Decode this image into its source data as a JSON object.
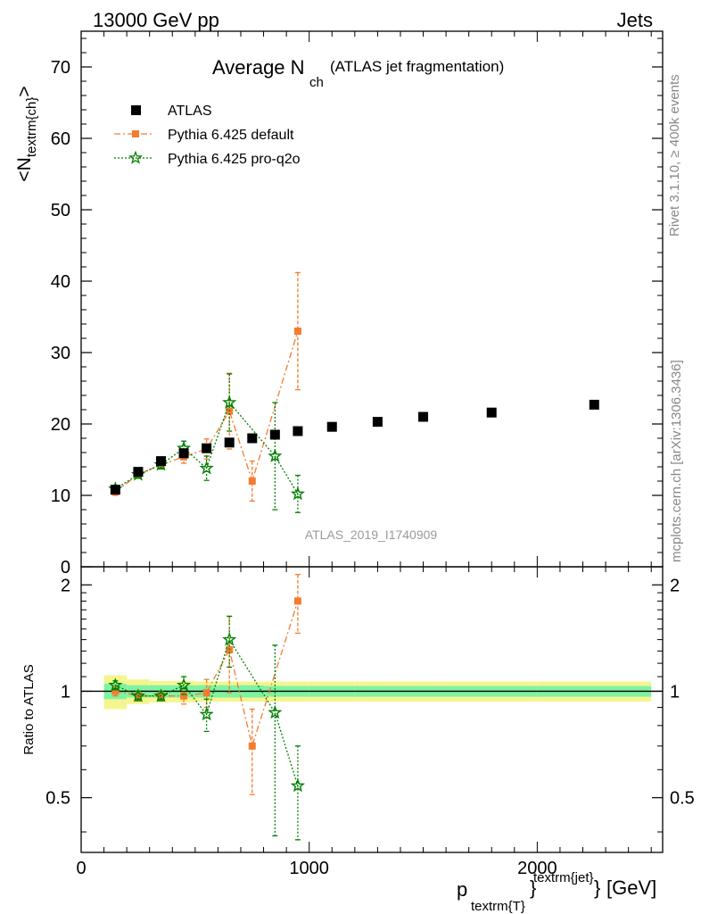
{
  "header": {
    "left": "13000 GeV pp",
    "right": "Jets"
  },
  "side_labels": {
    "rivet": "Rivet 3.1.10, ≥ 400k events",
    "mcplots": "mcplots.cern.ch [arXiv:1306.3436]"
  },
  "chart_data": [
    {
      "type": "scatter",
      "title_main": "Average N",
      "title_sub": "ch",
      "title_rest": "(ATLAS jet fragmentation)",
      "ylabel": "<N",
      "ylabel_sub": "textrm{ch}",
      "ylabel_close": ">",
      "watermark": "ATLAS_2019_I1740909",
      "xlim": [
        0,
        2550
      ],
      "ylim": [
        0,
        75
      ],
      "yticks": [
        0,
        10,
        20,
        30,
        40,
        50,
        60,
        70
      ],
      "ytick_labels": [
        "0",
        "10",
        "20",
        "30",
        "40",
        "50",
        "60",
        "70"
      ],
      "legend": [
        "ATLAS",
        "Pythia 6.425 default",
        "Pythia 6.425 pro-q2o"
      ],
      "legend_position": "top-left",
      "series": [
        {
          "name": "ATLAS",
          "color": "#000000",
          "marker": "square",
          "x": [
            150,
            250,
            350,
            450,
            550,
            650,
            750,
            850,
            950,
            1100,
            1300,
            1500,
            1800,
            2250
          ],
          "y": [
            10.8,
            13.3,
            14.8,
            15.9,
            16.6,
            17.4,
            18.0,
            18.5,
            19.0,
            19.6,
            20.3,
            21.0,
            21.6,
            22.7
          ]
        },
        {
          "name": "Pythia 6.425 default",
          "color": "#f47c30",
          "marker": "square-small",
          "line": "dashdot",
          "x": [
            150,
            250,
            350,
            450,
            550,
            650,
            750,
            950
          ],
          "y": [
            10.5,
            12.9,
            14.3,
            15.4,
            16.5,
            21.8,
            12.0,
            33.0
          ],
          "err": [
            0.5,
            0.5,
            0.6,
            0.9,
            1.4,
            5.3,
            2.8,
            8.2
          ]
        },
        {
          "name": "Pythia 6.425 pro-q2o",
          "color": "#008000",
          "marker": "star",
          "line": "dotted",
          "x": [
            150,
            250,
            350,
            450,
            550,
            650,
            850,
            950
          ],
          "y": [
            10.9,
            12.9,
            14.3,
            16.6,
            13.8,
            23.0,
            15.5,
            10.2
          ],
          "err": [
            0.5,
            0.5,
            0.6,
            1.0,
            1.7,
            4.0,
            7.5,
            2.6
          ]
        }
      ]
    },
    {
      "type": "scatter",
      "ylabel": "Ratio to ATLAS",
      "xlabel": "p",
      "xlabel_sub": "textrm{T}",
      "xlabel_sup": "textrm{jet}",
      "xlabel_close": "}",
      "xlabel_unit": "[GeV]",
      "xlim": [
        0,
        2550
      ],
      "ylim": [
        0.35,
        2.25
      ],
      "yticks": [
        0.5,
        1,
        2
      ],
      "ytick_labels": [
        "0.5",
        "1",
        "2"
      ],
      "xticks": [
        0,
        1000,
        2000
      ],
      "xtick_labels": [
        "0",
        "1000",
        "2000"
      ],
      "bands": {
        "inner_color": "#7ff2a3",
        "outer_color": "#f5f590",
        "bins": [
          {
            "x": [
              100,
              200
            ],
            "inner": 0.05,
            "outer": 0.11
          },
          {
            "x": [
              200,
              300
            ],
            "inner": 0.04,
            "outer": 0.08
          },
          {
            "x": [
              300,
              400
            ],
            "inner": 0.04,
            "outer": 0.07
          },
          {
            "x": [
              400,
              500
            ],
            "inner": 0.04,
            "outer": 0.07
          },
          {
            "x": [
              500,
              600
            ],
            "inner": 0.04,
            "outer": 0.065
          },
          {
            "x": [
              600,
              700
            ],
            "inner": 0.04,
            "outer": 0.065
          },
          {
            "x": [
              700,
              800
            ],
            "inner": 0.04,
            "outer": 0.065
          },
          {
            "x": [
              800,
              900
            ],
            "inner": 0.035,
            "outer": 0.065
          },
          {
            "x": [
              900,
              1000
            ],
            "inner": 0.035,
            "outer": 0.065
          },
          {
            "x": [
              1000,
              1200
            ],
            "inner": 0.035,
            "outer": 0.065
          },
          {
            "x": [
              1200,
              1400
            ],
            "inner": 0.035,
            "outer": 0.065
          },
          {
            "x": [
              1400,
              1600
            ],
            "inner": 0.035,
            "outer": 0.065
          },
          {
            "x": [
              1600,
              2000
            ],
            "inner": 0.035,
            "outer": 0.065
          },
          {
            "x": [
              2000,
              2500
            ],
            "inner": 0.035,
            "outer": 0.065
          }
        ]
      },
      "series": [
        {
          "name": "Pythia 6.425 default",
          "color": "#f47c30",
          "marker": "square-small",
          "line": "dashdot",
          "x": [
            150,
            250,
            350,
            450,
            550,
            650,
            750,
            950
          ],
          "y": [
            1.0,
            0.97,
            0.97,
            0.97,
            0.99,
            1.31,
            0.7,
            1.8
          ],
          "err": [
            0.03,
            0.03,
            0.03,
            0.05,
            0.09,
            0.32,
            0.19,
            0.34
          ]
        },
        {
          "name": "Pythia 6.425 pro-q2o",
          "color": "#008000",
          "marker": "star",
          "line": "dotted",
          "x": [
            150,
            250,
            350,
            450,
            550,
            650,
            850,
            950
          ],
          "y": [
            1.04,
            0.97,
            0.97,
            1.04,
            0.86,
            1.4,
            0.87,
            0.54
          ],
          "err": [
            0.03,
            0.03,
            0.03,
            0.06,
            0.09,
            0.23,
            0.48,
            0.16
          ]
        }
      ]
    }
  ]
}
